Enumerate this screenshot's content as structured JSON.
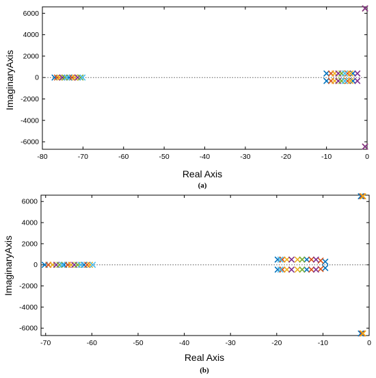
{
  "colors": [
    "#0072bd",
    "#d95319",
    "#edb120",
    "#7e2f8e",
    "#77ac30",
    "#4dbeee",
    "#a2142f"
  ],
  "chart_data": [
    {
      "type": "scatter",
      "panel_label": "(a)",
      "xlabel": "Real Axis",
      "ylabel": "ImaginaryAxis",
      "xlim": [
        -80,
        0
      ],
      "ylim": [
        -6700,
        6600
      ],
      "xticks": [
        -80,
        -70,
        -60,
        -50,
        -40,
        -30,
        -20,
        -10,
        0
      ],
      "yticks": [
        -6000,
        -4000,
        -2000,
        0,
        2000,
        4000,
        6000
      ],
      "zero_line": true,
      "marker": "x",
      "series": [
        {
          "x": [
            -77.0,
            -73.4,
            -10.0,
            -10.0,
            -3.5,
            -3.5,
            -0.5,
            -0.5
          ],
          "y": [
            0,
            0,
            380,
            -320,
            380,
            -320,
            6450,
            -6450
          ]
        },
        {
          "x": [
            -76.4,
            -72.7,
            -8.9,
            -8.9,
            -4.8,
            -4.8,
            -0.5,
            -0.5
          ],
          "y": [
            0,
            0,
            380,
            -320,
            380,
            -320,
            6450,
            -6450
          ]
        },
        {
          "x": [
            -75.8,
            -72.0,
            -8.0,
            -8.0,
            -4.1,
            -4.1,
            -0.5,
            -0.5
          ],
          "y": [
            0,
            0,
            380,
            -320,
            380,
            -320,
            6450,
            -6450
          ]
        },
        {
          "x": [
            -75.1,
            -71.3,
            -7.1,
            -7.1,
            -2.4,
            -2.4,
            -0.5,
            -0.5
          ],
          "y": [
            0,
            0,
            380,
            -320,
            380,
            -320,
            6450,
            -6450
          ]
        },
        {
          "x": [
            -74.5,
            -70.6,
            -6.3,
            -6.3
          ],
          "y": [
            0,
            0,
            380,
            -320
          ]
        },
        {
          "x": [
            -74.0,
            -70.1,
            -5.5,
            -5.5
          ],
          "y": [
            0,
            0,
            380,
            -320
          ]
        }
      ]
    },
    {
      "type": "scatter",
      "panel_label": "(b)",
      "xlabel": "Real Axis",
      "ylabel": "ImaginaryAxis",
      "xlim": [
        -71,
        0
      ],
      "ylim": [
        -6700,
        6600
      ],
      "xticks": [
        -70,
        -60,
        -50,
        -40,
        -30,
        -20,
        -10,
        0
      ],
      "yticks": [
        -6000,
        -4000,
        -2000,
        0,
        2000,
        4000,
        6000
      ],
      "zero_line": true,
      "marker": "x",
      "series": [
        {
          "x": [
            -70.2,
            -66.0,
            -61.7,
            -19.8,
            -19.8,
            -13.5,
            -13.5,
            -9.5,
            -9.5,
            -1.8,
            -1.8
          ],
          "y": [
            0,
            0,
            0,
            500,
            -450,
            500,
            -450,
            300,
            -300,
            6500,
            -6500
          ]
        },
        {
          "x": [
            -69.4,
            -65.2,
            -61.0,
            -18.8,
            -18.8,
            -12.5,
            -12.5,
            -10.5,
            -10.5,
            -1.5,
            -1.5
          ],
          "y": [
            0,
            0,
            0,
            500,
            -450,
            500,
            -450,
            400,
            -400,
            6500,
            -6500
          ]
        },
        {
          "x": [
            -68.5,
            -64.5,
            -60.4,
            -17.8,
            -17.8,
            -15.5,
            -15.5,
            -1.3,
            -1.3
          ],
          "y": [
            0,
            0,
            0,
            500,
            -450,
            500,
            -450,
            6500,
            -6500
          ]
        },
        {
          "x": [
            -67.7,
            -63.8,
            -16.8,
            -16.8,
            -11.5,
            -11.5
          ],
          "y": [
            0,
            0,
            500,
            -450,
            500,
            -450
          ]
        },
        {
          "x": [
            -67.0,
            -63.1,
            -14.5,
            -14.5
          ],
          "y": [
            0,
            0,
            500,
            -450
          ]
        },
        {
          "x": [
            -66.4,
            -62.4,
            -59.8,
            -19.2,
            -19.2
          ],
          "y": [
            0,
            0,
            0,
            500,
            -450
          ]
        }
      ]
    }
  ]
}
